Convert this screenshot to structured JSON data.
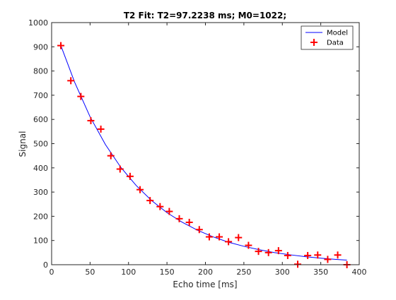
{
  "figure": {
    "background": "#ffffff",
    "axes_color": "#262626"
  },
  "chart_data": {
    "type": "scatter",
    "title": "T2 Fit: T2=97.2238 ms; M0=1022;",
    "xlabel": "Echo time [ms]",
    "ylabel": "Signal",
    "xlim": [
      0,
      400
    ],
    "ylim": [
      0,
      1000
    ],
    "xticks": [
      0,
      50,
      100,
      150,
      200,
      250,
      300,
      350,
      400
    ],
    "yticks": [
      0,
      100,
      200,
      300,
      400,
      500,
      600,
      700,
      800,
      900,
      1000
    ],
    "xtick_labels": [
      "0",
      "50",
      "100",
      "150",
      "200",
      "250",
      "300",
      "350",
      "400"
    ],
    "ytick_labels": [
      "0",
      "100",
      "200",
      "300",
      "400",
      "500",
      "600",
      "700",
      "800",
      "900",
      "1000"
    ],
    "grid": false,
    "legend_position": "top-right",
    "series": [
      {
        "name": "Model",
        "kind": "line",
        "color": "#0000ff",
        "model": {
          "M0": 1022,
          "T2": 97.2238
        },
        "x": [
          12,
          30,
          50,
          70,
          90,
          110,
          130,
          150,
          170,
          190,
          210,
          230,
          250,
          270,
          290,
          310,
          330,
          350,
          370,
          384
        ],
        "y": [
          905,
          753,
          611,
          496,
          402,
          327,
          265,
          215,
          175,
          142,
          115,
          93,
          76,
          62,
          50,
          41,
          33,
          27,
          22,
          19
        ]
      },
      {
        "name": "Data",
        "kind": "marker",
        "marker": "+",
        "color": "#ff0000",
        "x": [
          12,
          25,
          38,
          51,
          64,
          77,
          89,
          102,
          115,
          128,
          141,
          153,
          166,
          179,
          192,
          205,
          218,
          230,
          243,
          256,
          269,
          282,
          295,
          307,
          320,
          333,
          346,
          359,
          372,
          384
        ],
        "y": [
          905,
          760,
          695,
          595,
          560,
          450,
          395,
          365,
          310,
          265,
          240,
          220,
          190,
          175,
          145,
          115,
          115,
          95,
          112,
          80,
          55,
          50,
          58,
          38,
          2,
          38,
          40,
          22,
          40,
          0
        ]
      }
    ]
  }
}
